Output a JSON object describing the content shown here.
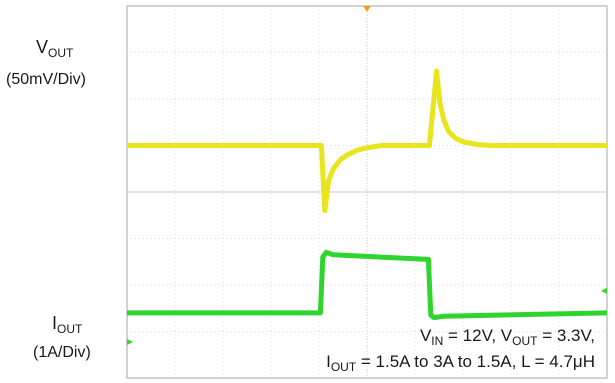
{
  "chart_data": {
    "type": "line",
    "x_unit": "div",
    "x_divisions": 10,
    "channels": [
      {
        "label": "V",
        "label_sub": "OUT",
        "scale": "(50mV/Div)",
        "color": "#e8e51c",
        "x": [
          0,
          3.7,
          4.05,
          4.12,
          4.2,
          4.3,
          4.45,
          4.6,
          4.8,
          5.0,
          5.3,
          5.6,
          6.3,
          6.45,
          6.52,
          6.6,
          6.7,
          6.85,
          7.0,
          7.3,
          7.6,
          10
        ],
        "y_div": [
          5.0,
          5.0,
          5.0,
          3.6,
          4.25,
          4.5,
          4.7,
          4.8,
          4.9,
          4.95,
          5.0,
          5.0,
          5.0,
          6.6,
          5.9,
          5.55,
          5.3,
          5.15,
          5.08,
          5.02,
          5.0,
          5.0
        ]
      },
      {
        "label": "I",
        "label_sub": "OUT",
        "scale": "(1A/Div)",
        "color": "#2fd52f",
        "x": [
          0,
          4.03,
          4.08,
          4.15,
          4.3,
          6.28,
          6.33,
          6.4,
          6.6,
          10
        ],
        "y_div": [
          1.4,
          1.4,
          2.6,
          2.7,
          2.65,
          2.55,
          1.35,
          1.3,
          1.33,
          1.4
        ]
      }
    ],
    "annotation": {
      "line1": {
        "v_in": "IN",
        "v_in_val": " = 12V, V",
        "v_out": "OUT",
        "v_out_val": " = 3.3V,"
      },
      "line2": {
        "i_out": "OUT",
        "i_out_val": " = 1.5A to 3A to 1.5A, L = 4.7μH",
        "prefix": "I"
      }
    },
    "grid": true
  },
  "colors": {
    "background": "#ffffff",
    "grid": "#dcdcdc",
    "frame": "#b5b5b5",
    "trigger_marker": "#f0a020"
  }
}
